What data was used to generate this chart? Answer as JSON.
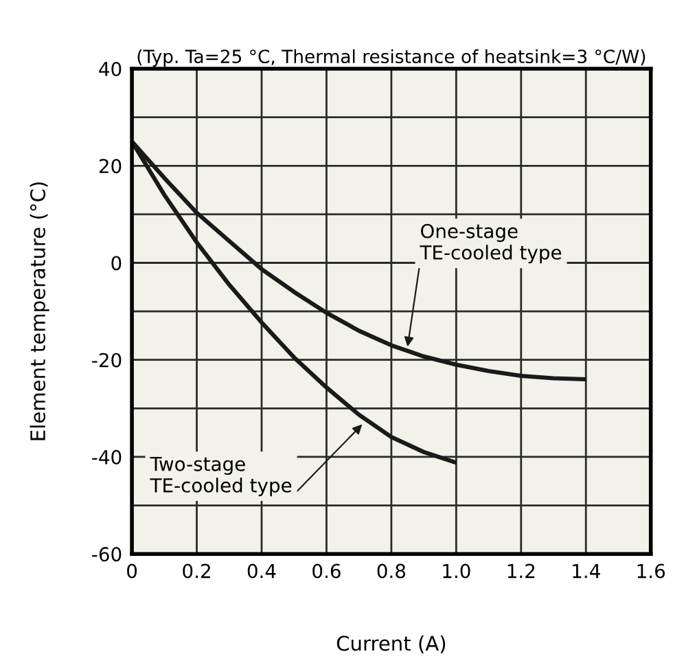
{
  "chart_data": {
    "type": "line",
    "title": "(Typ. Ta=25 °C, Thermal resistance of heatsink=3 °C/W)",
    "xlabel": "Current (A)",
    "ylabel": "Element temperature (°C)",
    "series": [
      {
        "color": "#1a1a1a",
        "x": [
          0,
          0.1,
          0.2,
          0.3,
          0.4,
          0.5,
          0.6,
          0.7,
          0.8,
          0.9,
          1.0,
          1.1,
          1.2,
          1.3,
          1.4
        ],
        "values": [
          25,
          17.5,
          10.3,
          4.5,
          -1.3,
          -6,
          -10.3,
          -14,
          -17,
          -19.3,
          -21,
          -22.3,
          -23.3,
          -23.8,
          -24
        ]
      },
      {
        "color": "#1a1a1a",
        "x": [
          0,
          0.1,
          0.2,
          0.3,
          0.4,
          0.5,
          0.6,
          0.7,
          0.8,
          0.9,
          1.0
        ],
        "values": [
          25,
          14,
          4.2,
          -4.5,
          -12.3,
          -19.5,
          -25.7,
          -31.3,
          -35.9,
          -39,
          -41.2
        ]
      }
    ],
    "annotations": [
      {
        "text": "One-stage\nTE-cooled type",
        "x": 0.85,
        "y": -17.3
      },
      {
        "text": "Two-stage\nTE-cooled type",
        "x": 0.71,
        "y": -33.3
      }
    ],
    "xlim": [
      0,
      1.6
    ],
    "xticks": [
      0,
      0.2,
      0.4,
      0.6,
      0.8,
      {
        "value": 1.0,
        "label": "1.0"
      },
      1.2,
      1.4,
      1.6
    ],
    "ylim": [
      -60,
      40
    ],
    "yticks": [
      -60,
      {
        "value": -50,
        "label": null
      },
      -40,
      {
        "value": -30,
        "label": null
      },
      -20,
      {
        "value": -10,
        "label": null
      },
      0,
      {
        "value": 10,
        "label": null
      },
      20,
      {
        "value": 30,
        "label": null
      },
      40
    ],
    "grid": true,
    "line_style": "solid",
    "marker": "none"
  }
}
